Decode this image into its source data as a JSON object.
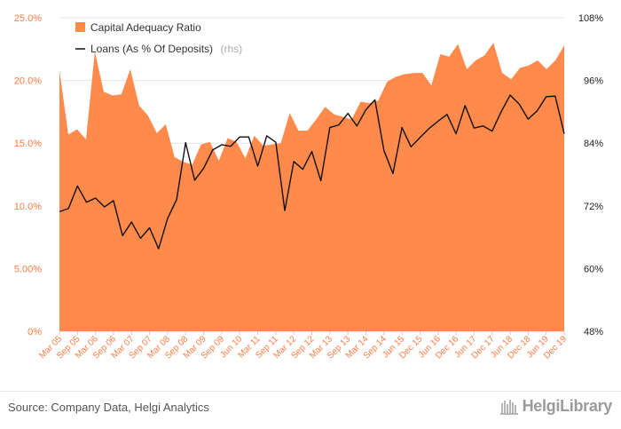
{
  "chart_data": {
    "type": "area+line",
    "series": [
      {
        "name": "Capital Adequacy Ratio",
        "axis": "left",
        "kind": "area",
        "color": "#ff8a4c",
        "values": [
          20.8,
          15.7,
          16.1,
          15.3,
          22.3,
          19.1,
          18.8,
          18.9,
          20.9,
          18.0,
          17.2,
          15.8,
          16.5,
          13.9,
          13.5,
          13.3,
          14.9,
          15.1,
          13.6,
          15.4,
          15.1,
          13.8,
          15.6,
          14.8,
          14.9,
          15.0,
          17.4,
          16.0,
          16.0,
          16.9,
          17.9,
          17.3,
          17.1,
          16.9,
          18.3,
          18.2,
          18.4,
          19.9,
          20.3,
          20.5,
          20.6,
          20.6,
          19.6,
          22.1,
          21.9,
          22.9,
          20.9,
          21.6,
          22.0,
          23.0,
          20.6,
          20.1,
          21.0,
          21.2,
          21.6,
          20.9,
          21.6,
          22.8
        ]
      },
      {
        "name": "Loans (As % Of Deposits)",
        "unit_label": "(rhs)",
        "axis": "right",
        "kind": "line",
        "color": "#111111",
        "values": [
          70.9,
          71.5,
          75.8,
          72.7,
          73.5,
          71.8,
          73.0,
          66.3,
          68.9,
          65.8,
          67.8,
          63.8,
          69.6,
          73.2,
          84.1,
          76.9,
          79.2,
          82.7,
          83.7,
          83.4,
          85.2,
          85.2,
          79.6,
          85.4,
          84.2,
          71.1,
          80.5,
          79.0,
          82.4,
          76.8,
          87.0,
          87.5,
          89.7,
          87.3,
          90.4,
          92.3,
          82.6,
          78.2,
          87.0,
          83.3,
          85.1,
          86.8,
          88.2,
          89.5,
          85.8,
          91.2,
          86.9,
          87.3,
          86.3,
          90.0,
          93.2,
          91.5,
          88.6,
          90.2,
          92.9,
          93.0,
          85.8
        ]
      }
    ],
    "x_tick_labels": [
      "Mar 05",
      "Sep 05",
      "Mar 06",
      "Sep 06",
      "Mar 07",
      "Sep 07",
      "Mar 08",
      "Sep 08",
      "Mar 09",
      "Sep 09",
      "Jun 10",
      "Mar 11",
      "Sep 11",
      "Mar 12",
      "Sep 12",
      "Mar 13",
      "Sep 13",
      "Mar 14",
      "Sep 14",
      "Jun 15",
      "Dec 15",
      "Jun 16",
      "Dec 16",
      "Jun 17",
      "Dec 17",
      "Jun 18",
      "Dec 18",
      "Jun 19",
      "Dec 19"
    ],
    "y_left_ticks": [
      "0%",
      "5.00%",
      "10.0%",
      "15.0%",
      "20.0%",
      "25.0%"
    ],
    "y_left_lim": [
      0,
      25
    ],
    "y_right_ticks": [
      "48%",
      "60%",
      "72%",
      "84%",
      "96%",
      "108%"
    ],
    "y_right_lim": [
      48,
      108
    ],
    "grid": "horizontal",
    "legend_position": "top-left"
  },
  "footer": {
    "source": "Source: Company Data, Helgi Analytics",
    "logo_text": "HelgiLibrary"
  }
}
